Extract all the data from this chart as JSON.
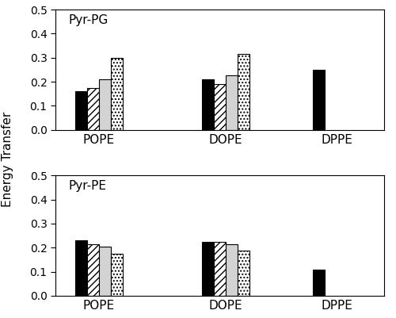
{
  "top_label": "Pyr-PG",
  "bottom_label": "Pyr-PE",
  "ylabel": "Energy Transfer",
  "groups": [
    "POPE",
    "DOPE",
    "DPPE"
  ],
  "top_values": [
    [
      0.16,
      0.175,
      0.21,
      0.3
    ],
    [
      0.21,
      0.19,
      0.225,
      0.315
    ],
    [
      0.25,
      null,
      null,
      null
    ]
  ],
  "bottom_values": [
    [
      0.23,
      0.215,
      0.205,
      0.175
    ],
    [
      0.225,
      0.225,
      0.215,
      0.188
    ],
    [
      0.107,
      null,
      null,
      null
    ]
  ],
  "ylim": [
    0.0,
    0.5
  ],
  "yticks": [
    0.0,
    0.1,
    0.2,
    0.3,
    0.4,
    0.5
  ],
  "bar_width": 0.15,
  "group_centers": [
    0.9,
    2.5,
    3.9
  ],
  "xlim": [
    0.35,
    4.5
  ],
  "label_fontsize": 11,
  "tick_fontsize": 10,
  "annotation_fontsize": 11
}
